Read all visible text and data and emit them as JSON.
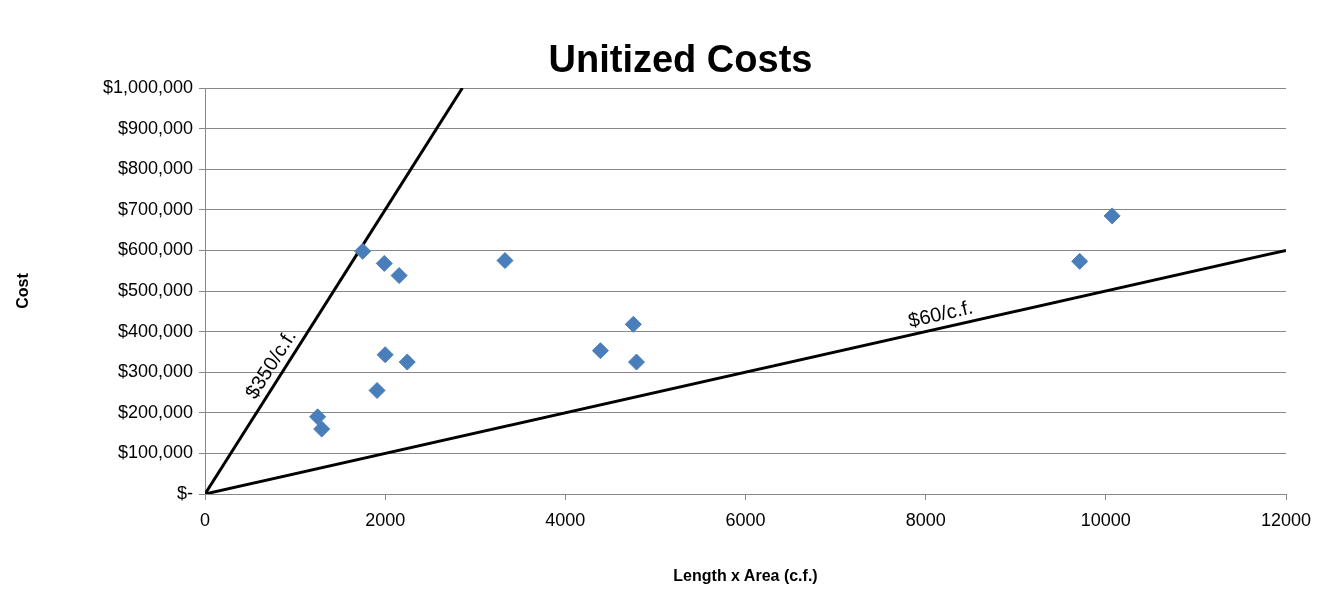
{
  "chart_data": {
    "type": "scatter",
    "title": "Unitized Costs",
    "xlabel": "Length x Area (c.f.)",
    "ylabel": "Cost",
    "xlim": [
      0,
      12000
    ],
    "xticks": [
      0,
      2000,
      4000,
      6000,
      8000,
      10000,
      12000
    ],
    "ylim": [
      0,
      1000000
    ],
    "yticks": [
      {
        "value": 0,
        "label": "$-"
      },
      {
        "value": 100000,
        "label": "$100,000"
      },
      {
        "value": 200000,
        "label": "$200,000"
      },
      {
        "value": 300000,
        "label": "$300,000"
      },
      {
        "value": 400000,
        "label": "$400,000"
      },
      {
        "value": 500000,
        "label": "$500,000"
      },
      {
        "value": 600000,
        "label": "$600,000"
      },
      {
        "value": 700000,
        "label": "$700,000"
      },
      {
        "value": 800000,
        "label": "$800,000"
      },
      {
        "value": 900000,
        "label": "$900,000"
      },
      {
        "value": 1000000,
        "label": "$1,000,000"
      }
    ],
    "grid": "y",
    "legend": false,
    "series": [
      {
        "color": "#4a7ebb",
        "marker": "diamond",
        "x": [
          1750,
          1990,
          2155,
          3330,
          2000,
          2245,
          1910,
          1250,
          1295,
          4390,
          4755,
          4790,
          9710,
          10070
        ],
        "values": [
          598000,
          568000,
          538000,
          575000,
          343000,
          325000,
          255000,
          190000,
          160000,
          353000,
          418000,
          325000,
          573000,
          685000
        ]
      },
      {
        "type": "line",
        "color": "#000000",
        "marker": "none",
        "line_style": "solid",
        "x": [
          0,
          2857
        ],
        "values": [
          0,
          1000000
        ]
      },
      {
        "type": "line",
        "color": "#000000",
        "marker": "none",
        "line_style": "solid",
        "x": [
          0,
          12000
        ],
        "values": [
          0,
          600000
        ]
      }
    ],
    "annotations": [
      {
        "text": "$350/c.f.",
        "x": 860,
        "y": 301000
      },
      {
        "text": "$60/c.f.",
        "x": 8200,
        "y": 410000
      }
    ]
  }
}
